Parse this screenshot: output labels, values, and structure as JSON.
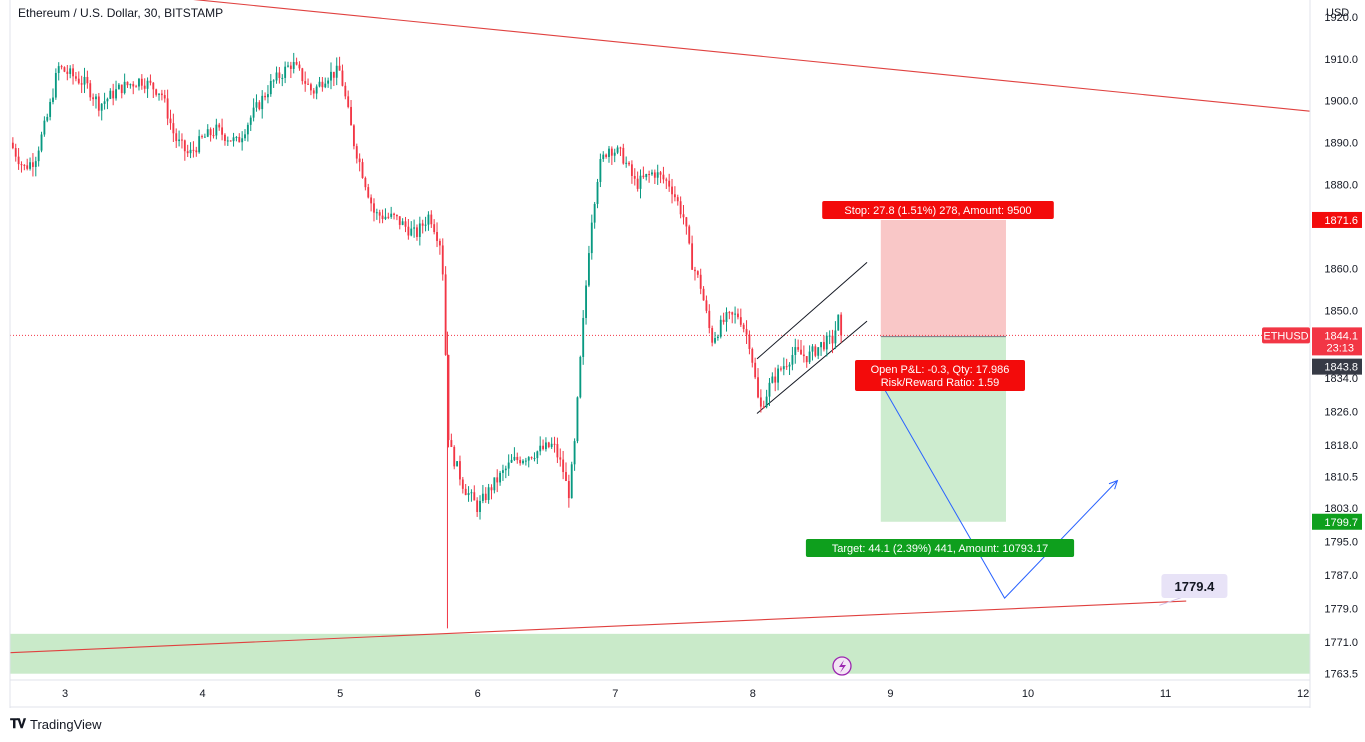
{
  "header": {
    "symbol_title": "Ethereum / U.S. Dollar, 30, BITSTAMP",
    "currency": "USD"
  },
  "footer": {
    "brand": "TradingView",
    "brand_icon": "tradingview-logo-icon"
  },
  "colors": {
    "up": "#089981",
    "down": "#f23645",
    "trendline": "#e0413f",
    "stop_zone": "#f9c7c7",
    "target_zone": "#cdeccf",
    "stop_label_bg": "#f30b0b",
    "target_label_bg": "#0e9f1d",
    "projection": "#2962ff",
    "support_zone": "#c9eac9",
    "last_price": "#f23645"
  },
  "chart_data": {
    "type": "candlestick",
    "title": "Ethereum / U.S. Dollar, 30, BITSTAMP",
    "timeframe": "30",
    "exchange": "BITSTAMP",
    "x_ticks": [
      "3",
      "4",
      "5",
      "6",
      "7",
      "8",
      "9",
      "10",
      "11",
      "12"
    ],
    "y_ticks": [
      1920.0,
      1910.0,
      1900.0,
      1890.0,
      1880.0,
      1860.0,
      1850.0,
      1834.0,
      1826.0,
      1818.0,
      1810.5,
      1803.0,
      1795.0,
      1787.0,
      1779.0,
      1771.0,
      1763.5
    ],
    "y_tick_labels": [
      "1920.0",
      "1910.0",
      "1900.0",
      "1890.0",
      "1880.0",
      "1860.0",
      "1850.0",
      "1834.0",
      "1826.0",
      "1818.0",
      "1810.5",
      "1803.0",
      "1795.0",
      "1787.0",
      "1779.0",
      "1771.0",
      "1763.5"
    ],
    "ylim": [
      1762,
      1924
    ],
    "xlim": [
      2.6,
      12.05
    ],
    "price_path": [
      [
        2.6,
        1890
      ],
      [
        2.7,
        1884
      ],
      [
        2.78,
        1886
      ],
      [
        2.88,
        1897
      ],
      [
        2.95,
        1908
      ],
      [
        3.05,
        1906
      ],
      [
        3.15,
        1904
      ],
      [
        3.25,
        1899
      ],
      [
        3.4,
        1903
      ],
      [
        3.55,
        1905
      ],
      [
        3.7,
        1902
      ],
      [
        3.8,
        1891
      ],
      [
        3.9,
        1887
      ],
      [
        4.0,
        1891
      ],
      [
        4.1,
        1893
      ],
      [
        4.25,
        1890
      ],
      [
        4.35,
        1896
      ],
      [
        4.5,
        1904
      ],
      [
        4.65,
        1909
      ],
      [
        4.8,
        1902
      ],
      [
        4.9,
        1906
      ],
      [
        5.0,
        1907
      ],
      [
        5.1,
        1890
      ],
      [
        5.25,
        1873
      ],
      [
        5.4,
        1872
      ],
      [
        5.55,
        1868
      ],
      [
        5.65,
        1873
      ],
      [
        5.74,
        1865
      ],
      [
        5.76,
        1846
      ],
      [
        5.79,
        1818
      ],
      [
        5.9,
        1808
      ],
      [
        6.0,
        1803
      ],
      [
        6.1,
        1808
      ],
      [
        6.25,
        1814
      ],
      [
        6.4,
        1816
      ],
      [
        6.55,
        1818
      ],
      [
        6.62,
        1812
      ],
      [
        6.66,
        1806
      ],
      [
        6.7,
        1816
      ],
      [
        6.75,
        1840
      ],
      [
        6.82,
        1870
      ],
      [
        6.88,
        1884
      ],
      [
        6.95,
        1889
      ],
      [
        7.05,
        1887
      ],
      [
        7.15,
        1880
      ],
      [
        7.28,
        1883
      ],
      [
        7.4,
        1880
      ],
      [
        7.5,
        1872
      ],
      [
        7.55,
        1862
      ],
      [
        7.62,
        1856
      ],
      [
        7.7,
        1843
      ],
      [
        7.8,
        1848
      ],
      [
        7.9,
        1849
      ],
      [
        7.98,
        1842
      ],
      [
        8.05,
        1826
      ],
      [
        8.12,
        1832
      ],
      [
        8.2,
        1836
      ],
      [
        8.3,
        1840
      ],
      [
        8.4,
        1839
      ],
      [
        8.5,
        1842
      ],
      [
        8.58,
        1843
      ],
      [
        8.62,
        1848
      ],
      [
        8.66,
        1844.1
      ]
    ],
    "candles": {
      "wick_factor": 0.45
    },
    "last_price": 1844.1,
    "last_price_label": "1844.1",
    "countdown": "23:13",
    "ticker": "ETHUSD",
    "position": {
      "type": "short",
      "entry": 1843.8,
      "entry_label": "1843.8",
      "stop": 1871.6,
      "stop_label": "1871.6",
      "target": 1799.7,
      "target_label": "1799.7",
      "x_start": 8.93,
      "x_end": 9.84,
      "stop_text": "Stop: 27.8 (1.51%) 278, Amount: 9500",
      "target_text": "Target: 44.1 (2.39%) 441, Amount: 10793.17",
      "pnl_text": "Open P&L: -0.3, Qty: 17.986",
      "rr_text": "Risk/Reward Ratio: 1.59"
    },
    "trendlines": [
      {
        "name": "upper-resistance",
        "x1": 2.6,
        "y1": 1928.5,
        "x2": 12.05,
        "y2": 1897.5
      },
      {
        "name": "lower-support",
        "x1": 2.6,
        "y1": 1768.5,
        "x2": 11.15,
        "y2": 1780.8
      }
    ],
    "channel": [
      {
        "x1": 8.03,
        "y1": 1838.5,
        "x2": 8.83,
        "y2": 1861.5
      },
      {
        "x1": 8.03,
        "y1": 1825.5,
        "x2": 8.83,
        "y2": 1847.5
      }
    ],
    "projection_path": [
      [
        8.9,
        1834.5
      ],
      [
        9.83,
        1781.5
      ],
      [
        10.65,
        1809.5
      ]
    ],
    "support_zone": {
      "y_top": 1773.0,
      "y_bottom": 1763.5
    },
    "support_label": "1779.4",
    "support_label_anchor": {
      "x": 10.97,
      "y": 1784.4
    },
    "grid": false
  }
}
